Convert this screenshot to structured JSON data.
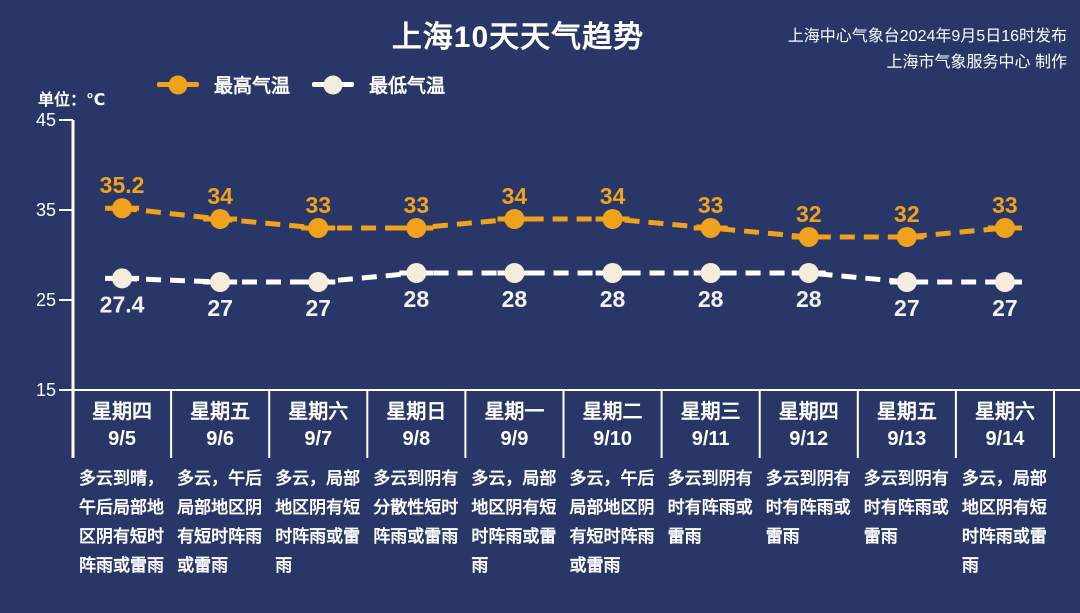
{
  "header": {
    "title": "上海10天天气趋势",
    "issued_by": "上海中心气象台2024年9月5日16时发布",
    "produced_by": "上海市气象服务中心 制作"
  },
  "unit_label": "单位：℃",
  "legend": {
    "high": "最高气温",
    "low": "最低气温"
  },
  "colors": {
    "background": "#283768",
    "high": "#F0A21C",
    "low_line": "#FFFFFF",
    "low_marker": "#F5EDDB",
    "axis": "#FFFFFF",
    "text": "#FFFFFF",
    "low_value_label": "#F2F2F7"
  },
  "chart_data": {
    "type": "line",
    "title": "上海10天天气趋势",
    "ylabel": "单位：℃",
    "ylim": [
      15,
      45
    ],
    "yticks": [
      45,
      35,
      25,
      15
    ],
    "grid": false,
    "legend_position": "top-left",
    "line_style": "dashed",
    "categories": [
      "9/5",
      "9/6",
      "9/7",
      "9/8",
      "9/9",
      "9/10",
      "9/11",
      "9/12",
      "9/13",
      "9/14"
    ],
    "weekdays": [
      "星期四",
      "星期五",
      "星期六",
      "星期日",
      "星期一",
      "星期二",
      "星期三",
      "星期四",
      "星期五",
      "星期六"
    ],
    "series": [
      {
        "name": "最高气温",
        "color": "#F0A21C",
        "marker_color": "#F0A21C",
        "values": [
          35.2,
          34,
          33,
          33,
          34,
          34,
          33,
          32,
          32,
          33
        ]
      },
      {
        "name": "最低气温",
        "color": "#FFFFFF",
        "marker_color": "#F5EDDB",
        "values": [
          27.4,
          27,
          27,
          28,
          28,
          28,
          28,
          28,
          27,
          27
        ]
      }
    ],
    "weather_descriptions": [
      "多云到晴，午后局部地区阴有短时阵雨或雷雨",
      "多云，午后局部地区阴有短时阵雨或雷雨",
      "多云，局部地区阴有短时阵雨或雷雨",
      "多云到阴有分散性短时阵雨或雷雨",
      "多云，局部地区阴有短时阵雨或雷雨",
      "多云，午后局部地区阴有短时阵雨或雷雨",
      "多云到阴有时有阵雨或雷雨",
      "多云到阴有时有阵雨或雷雨",
      "多云到阴有时有阵雨或雷雨",
      "多云，局部地区阴有短时阵雨或雷雨"
    ]
  }
}
